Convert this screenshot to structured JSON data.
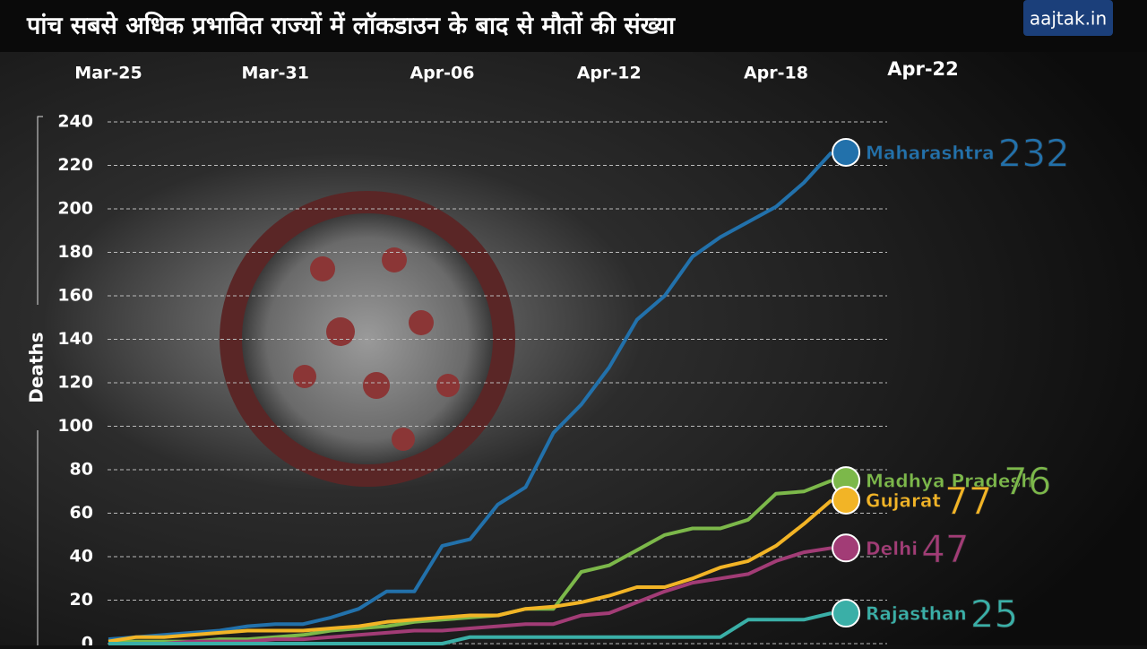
{
  "header": {
    "title": "पांच सबसे अधिक प्रभावित राज्यों में लॉकडाउन के बाद से मौतों की संख्या",
    "logo": "aajtak.in"
  },
  "chart_data": {
    "type": "line",
    "date_label": "Apr-22",
    "y_label": "Deaths",
    "x": [
      0,
      1,
      2,
      3,
      4,
      5,
      6,
      7,
      8,
      9,
      10,
      11,
      12,
      13,
      14,
      15,
      16,
      17,
      18,
      19,
      20,
      21,
      22,
      23,
      24,
      25,
      26
    ],
    "xlim": [
      0,
      28
    ],
    "xticks": [
      {
        "value": 0,
        "label": "Mar-25"
      },
      {
        "value": 6,
        "label": "Mar-31"
      },
      {
        "value": 12,
        "label": "Apr-06"
      },
      {
        "value": 18,
        "label": "Apr-12"
      },
      {
        "value": 24,
        "label": "Apr-18"
      }
    ],
    "ylim": [
      0,
      240
    ],
    "yticks": [
      0,
      20,
      40,
      60,
      80,
      100,
      120,
      140,
      160,
      180,
      200,
      220,
      240
    ],
    "grid": true,
    "series": [
      {
        "name": "Maharashtra",
        "color": "#2271ab",
        "end_value": 232,
        "values": [
          2,
          3,
          4,
          5,
          6,
          8,
          9,
          9,
          12,
          16,
          24,
          24,
          45,
          48,
          64,
          72,
          97,
          110,
          127,
          149,
          160,
          178,
          187,
          194,
          201,
          212,
          226
        ]
      },
      {
        "name": "Madhya Pradesh",
        "color": "#7cb84a",
        "end_value": 76,
        "values": [
          1,
          1,
          1,
          1,
          2,
          2,
          3,
          4,
          6,
          7,
          8,
          10,
          11,
          12,
          13,
          16,
          16,
          33,
          36,
          43,
          50,
          53,
          53,
          57,
          69,
          70,
          75
        ]
      },
      {
        "name": "Gujarat",
        "color": "#f2b426",
        "end_value": 77,
        "values": [
          1,
          3,
          3,
          4,
          5,
          6,
          6,
          6,
          7,
          8,
          10,
          11,
          12,
          13,
          13,
          16,
          17,
          19,
          22,
          26,
          26,
          30,
          35,
          38,
          45,
          55,
          66
        ]
      },
      {
        "name": "Delhi",
        "color": "#a23c76",
        "end_value": 47,
        "values": [
          0,
          0,
          0,
          1,
          1,
          1,
          2,
          2,
          3,
          4,
          5,
          6,
          6,
          7,
          8,
          9,
          9,
          13,
          14,
          19,
          24,
          28,
          30,
          32,
          38,
          42,
          44
        ]
      },
      {
        "name": "Rajasthan",
        "color": "#3aafa7",
        "end_value": 25,
        "values": [
          0,
          0,
          0,
          0,
          0,
          0,
          0,
          0,
          0,
          0,
          0,
          0,
          0,
          3,
          3,
          3,
          3,
          3,
          3,
          3,
          3,
          3,
          3,
          11,
          11,
          11,
          14
        ]
      }
    ]
  }
}
